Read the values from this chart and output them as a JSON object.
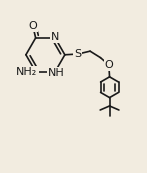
{
  "background_color": "#f2ece0",
  "line_color": "#1a1a1a",
  "line_width": 1.2,
  "dbo": 0.022,
  "figsize": [
    1.47,
    1.73
  ],
  "dpi": 100,
  "xlim": [
    0,
    1
  ],
  "ylim": [
    0,
    1
  ]
}
